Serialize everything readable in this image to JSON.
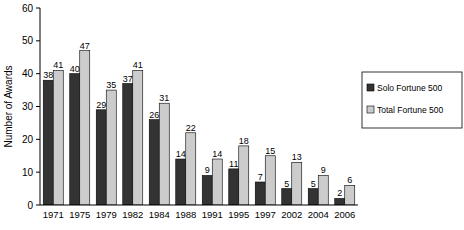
{
  "chart_data": {
    "type": "bar",
    "y_label": "Number of Awards",
    "categories": [
      "1971",
      "1975",
      "1979",
      "1982",
      "1984",
      "1988",
      "1991",
      "1995",
      "1997",
      "2002",
      "2004",
      "2006"
    ],
    "series": [
      {
        "name": "Solo Fortune 500",
        "color": "#333333",
        "values": [
          38,
          40,
          29,
          37,
          26,
          14,
          9,
          11,
          7,
          5,
          5,
          2
        ]
      },
      {
        "name": "Total Fortune 500",
        "color": "#cccccc",
        "values": [
          41,
          47,
          35,
          41,
          31,
          22,
          14,
          18,
          15,
          13,
          9,
          6
        ]
      }
    ],
    "ylim": [
      0,
      60
    ],
    "yticks": [
      0,
      10,
      20,
      30,
      40,
      50,
      60
    ],
    "grid": false,
    "legend": "right",
    "data_labels": true
  }
}
